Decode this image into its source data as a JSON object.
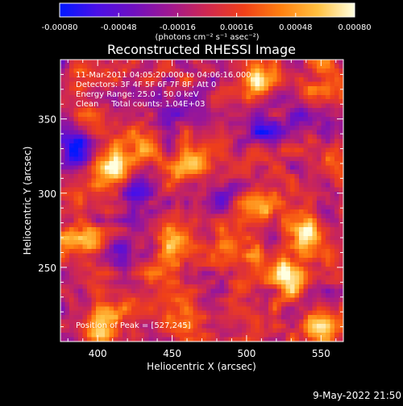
{
  "chart_data": {
    "type": "heatmap",
    "title": "Reconstructed RHESSI Image",
    "xlabel": "Heliocentric X (arcsec)",
    "ylabel": "Heliocentric Y (arcsec)",
    "xlim": [
      375,
      565
    ],
    "ylim": [
      200,
      390
    ],
    "x_ticks": [
      {
        "value": 400,
        "label": "400"
      },
      {
        "value": 450,
        "label": "450"
      },
      {
        "value": 500,
        "label": "500"
      },
      {
        "value": 550,
        "label": "550"
      }
    ],
    "y_ticks": [
      {
        "value": 250,
        "label": "250"
      },
      {
        "value": 300,
        "label": "300"
      },
      {
        "value": 350,
        "label": "350"
      }
    ],
    "colorbar": {
      "range": [
        -0.0008,
        0.0008
      ],
      "ticks": [
        {
          "value": -0.0008,
          "label": "-0.00080"
        },
        {
          "value": -0.00048,
          "label": "-0.00048"
        },
        {
          "value": -0.00016,
          "label": "-0.00016"
        },
        {
          "value": 0.00016,
          "label": "0.00016"
        },
        {
          "value": 0.00048,
          "label": "0.00048"
        },
        {
          "value": 0.0008,
          "label": "0.00080"
        }
      ],
      "colors": [
        "#0018ff",
        "#4a10e8",
        "#7010c0",
        "#a01890",
        "#d02850",
        "#f04018",
        "#ff8010",
        "#ffc040",
        "#ffffe0"
      ],
      "unit_label": "(photons cm⁻² s⁻¹ asec⁻²)"
    },
    "annotations": [
      "11-Mar-2011 04:05:20.000 to 04:06:16.000",
      "Detectors: 3F 4F 5F 6F 7F 8F, Att 0",
      "Energy Range: 25.0 - 50.0 keV",
      "Clean     Total counts: 1.04E+03"
    ],
    "peak_label": "Position of Peak = [527,245]",
    "peak": [
      527,
      245
    ],
    "hotspots": [
      {
        "x": 527,
        "y": 245,
        "value": 0.0008
      },
      {
        "x": 390,
        "y": 268,
        "value": 0.0007
      },
      {
        "x": 455,
        "y": 265,
        "value": 0.00062
      },
      {
        "x": 460,
        "y": 318,
        "value": 0.00058
      },
      {
        "x": 412,
        "y": 318,
        "value": 0.00052
      },
      {
        "x": 505,
        "y": 375,
        "value": 0.00048
      },
      {
        "x": 540,
        "y": 272,
        "value": 0.00062
      },
      {
        "x": 490,
        "y": 258,
        "value": 0.00056
      },
      {
        "x": 405,
        "y": 210,
        "value": 0.00062
      },
      {
        "x": 550,
        "y": 210,
        "value": 0.0006
      },
      {
        "x": 462,
        "y": 212,
        "value": 0.00046
      },
      {
        "x": 548,
        "y": 372,
        "value": 0.00045
      },
      {
        "x": 430,
        "y": 328,
        "value": 0.00044
      },
      {
        "x": 512,
        "y": 290,
        "value": 0.00046
      },
      {
        "x": 380,
        "y": 300,
        "value": 0.00036
      },
      {
        "x": 560,
        "y": 320,
        "value": 0.0004
      }
    ],
    "coldspots": [
      {
        "x": 385,
        "y": 330,
        "value": -0.00075
      },
      {
        "x": 425,
        "y": 300,
        "value": -0.0006
      },
      {
        "x": 515,
        "y": 342,
        "value": -0.00055
      },
      {
        "x": 418,
        "y": 262,
        "value": -0.0005
      },
      {
        "x": 540,
        "y": 352,
        "value": -0.00048
      },
      {
        "x": 448,
        "y": 360,
        "value": -0.0004
      },
      {
        "x": 480,
        "y": 300,
        "value": -0.00036
      }
    ]
  },
  "footer": {
    "date": "9-May-2022 21:50"
  }
}
